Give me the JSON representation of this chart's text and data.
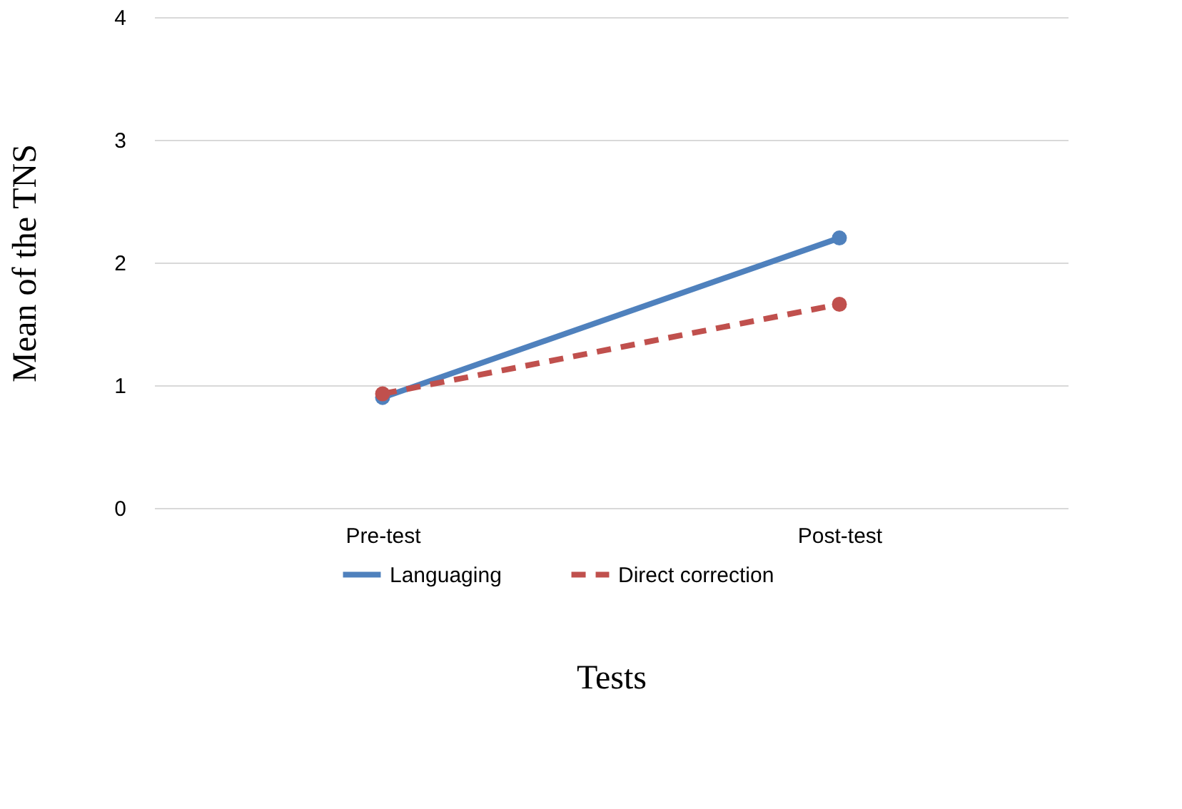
{
  "chart_data": {
    "type": "line",
    "xlabel": "Tests",
    "ylabel": "Mean of the TNS",
    "categories": [
      "Pre-test",
      "Post-test"
    ],
    "series": [
      {
        "name": "Languaging",
        "color": "#4f81bd",
        "values": [
          0.9,
          2.2
        ],
        "line_style": "solid"
      },
      {
        "name": "Direct correction",
        "color": "#c0504d",
        "values": [
          0.93,
          1.66
        ],
        "line_style": "dashed"
      }
    ],
    "ylim": [
      0,
      4
    ],
    "yticks": [
      0,
      1,
      2,
      3,
      4
    ],
    "grid": "y",
    "legend": "bottom",
    "marker": "circle"
  }
}
